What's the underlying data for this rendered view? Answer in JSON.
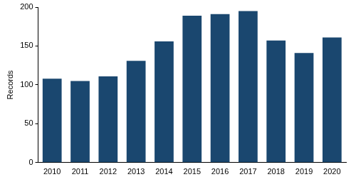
{
  "chart_data": {
    "type": "bar",
    "y_label": "Records",
    "categories": [
      "2010",
      "2011",
      "2012",
      "2013",
      "2014",
      "2015",
      "2016",
      "2017",
      "2018",
      "2019",
      "2020"
    ],
    "values": [
      108,
      105,
      111,
      131,
      156,
      189,
      191,
      195,
      157,
      141,
      161
    ],
    "color": "#1a476f",
    "ylim": [
      0,
      200
    ],
    "yticks": [
      0,
      50,
      100,
      150,
      200
    ],
    "grid": false
  }
}
